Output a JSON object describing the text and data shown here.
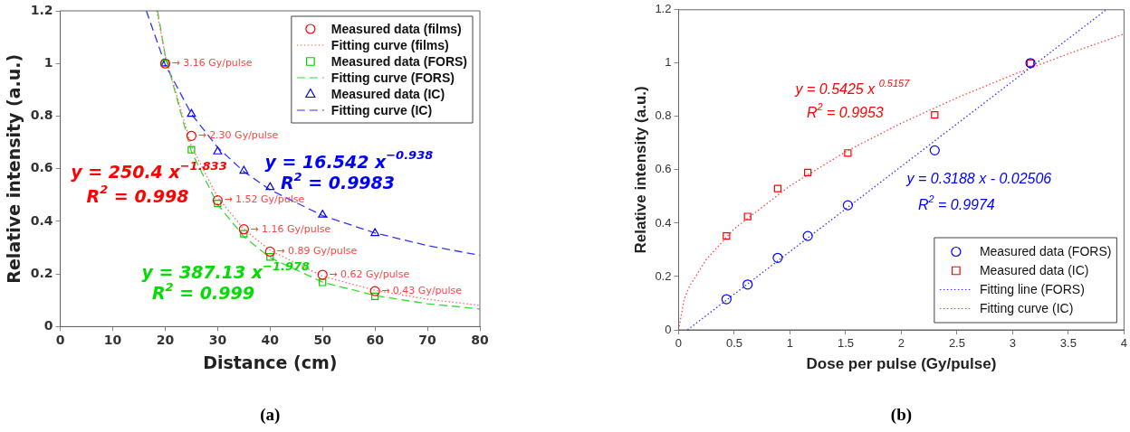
{
  "chart_data": [
    {
      "type": "scatter",
      "xlabel": "Distance (cm)",
      "ylabel": "Relative intensity (a.u.)",
      "xlim": [
        0,
        80
      ],
      "ylim": [
        0,
        1.2
      ],
      "xticks": [
        0,
        10,
        20,
        30,
        40,
        50,
        60,
        70,
        80
      ],
      "yticks": [
        0,
        0.2,
        0.4,
        0.6,
        0.8,
        1,
        1.2
      ],
      "grid": false,
      "legend": "top right",
      "x": [
        20,
        25,
        30,
        35,
        40,
        50,
        60
      ],
      "series": [
        {
          "name": "Measured data (films)",
          "color": "#ff0000",
          "type": "scatter",
          "marker": "circle",
          "values": [
            1,
            0.725,
            0.48,
            0.37,
            0.285,
            0.197,
            0.135
          ]
        },
        {
          "name": "Fitting curve (films)",
          "color": "#ff6666",
          "type": "line",
          "marker": "none",
          "line_style": "dotted",
          "x": [
            18.4,
            20,
            25,
            30,
            35,
            40,
            50,
            60,
            70,
            80
          ],
          "values": [
            1.2,
            1.03,
            0.686,
            0.491,
            0.37,
            0.29,
            0.192,
            0.138,
            0.104,
            0.081
          ]
        },
        {
          "name": "Measured data (FORS)",
          "color": "#00cc00",
          "type": "scatter",
          "marker": "square",
          "values": [
            1,
            0.672,
            0.468,
            0.353,
            0.265,
            0.168,
            0.115
          ]
        },
        {
          "name": "Fitting curve (FORS)",
          "color": "#33dd33",
          "type": "line",
          "marker": "none",
          "line_style": "dashed",
          "x": [
            18.55,
            20,
            25,
            30,
            35,
            40,
            50,
            60,
            70,
            80
          ],
          "values": [
            1.2,
            1.03,
            0.665,
            0.464,
            0.342,
            0.262,
            0.169,
            0.118,
            0.087,
            0.067
          ]
        },
        {
          "name": "Measured data (IC)",
          "color": "#0000ff",
          "type": "scatter",
          "marker": "triangle",
          "values": [
            1,
            0.808,
            0.665,
            0.592,
            0.53,
            0.425,
            0.355
          ]
        },
        {
          "name": "Fitting curve (IC)",
          "color": "#3333ff",
          "type": "line",
          "marker": "none",
          "line_style": "dashed",
          "x": [
            16.4,
            20,
            25,
            30,
            35,
            40,
            50,
            60,
            70,
            80
          ],
          "values": [
            1.2,
            0.996,
            0.808,
            0.681,
            0.589,
            0.52,
            0.422,
            0.356,
            0.308,
            0.271
          ]
        }
      ],
      "annotations": [
        "y = 250.4 x$^{−1.833}$",
        "R$^{2}$ = 0.998",
        "y = 16.542 x$^{−0.938}$",
        "R$^{2}$ = 0.9983",
        "y = 387.13 x$^{−1.978}$",
        "R$^{2}$ = 0.999",
        {
          "text": "→ 3.16 Gy/pulse",
          "x": 20,
          "y": 1
        },
        {
          "text": "→ 2.30 Gy/pulse",
          "x": 25,
          "y": 0.725
        },
        {
          "text": "→ 1.52 Gy/pulse",
          "x": 30,
          "y": 0.48
        },
        {
          "text": "→ 1.16 Gy/pulse",
          "x": 35,
          "y": 0.37
        },
        {
          "text": "→ 0.89 Gy/pulse",
          "x": 40,
          "y": 0.285
        },
        {
          "text": "→ 0.62 Gy/pulse",
          "x": 50,
          "y": 0.197
        },
        {
          "text": "→ 0.43 Gy/pulse",
          "x": 60,
          "y": 0.135
        },
        "(a)"
      ]
    },
    {
      "type": "scatter",
      "xlabel": "Dose per pulse (Gy/pulse)",
      "ylabel": "Relative intensity (a.u.)",
      "xlim": [
        0,
        4
      ],
      "ylim": [
        0,
        1.2
      ],
      "xticks": [
        0,
        0.5,
        1,
        1.5,
        2,
        2.5,
        3,
        3.5,
        4
      ],
      "yticks": [
        0,
        0.2,
        0.4,
        0.6,
        0.8,
        1,
        1.2
      ],
      "grid": false,
      "legend": "bottom right",
      "x": [
        0.43,
        0.62,
        0.89,
        1.16,
        1.52,
        2.3,
        3.16
      ],
      "series": [
        {
          "name": "Measured data (FORS)",
          "color": "#0000ff",
          "type": "scatter",
          "marker": "circle",
          "values": [
            0.115,
            0.17,
            0.27,
            0.352,
            0.467,
            0.673,
            1
          ]
        },
        {
          "name": "Measured data (IC)",
          "color": "#ff0000",
          "type": "scatter",
          "marker": "square",
          "values": [
            0.352,
            0.425,
            0.53,
            0.59,
            0.663,
            0.806,
            1
          ]
        },
        {
          "name": "Fitting line (FORS)",
          "color": "#3333ff",
          "type": "line",
          "marker": "none",
          "line_style": "dotted",
          "x": [
            0.08,
            3.84
          ],
          "values": [
            0,
            1.2
          ]
        },
        {
          "name": "Fitting curve (IC)",
          "color": "#ff4444",
          "type": "line",
          "marker": "none",
          "line_style": "dotted",
          "x": [
            0,
            0.05,
            0.1,
            0.25,
            0.5,
            1,
            1.5,
            2,
            2.5,
            3,
            3.5,
            4
          ],
          "values": [
            0,
            0.116,
            0.165,
            0.265,
            0.379,
            0.54,
            0.668,
            0.775,
            0.87,
            0.956,
            1.035,
            1.109
          ]
        }
      ],
      "annotations": [
        "y = 0.5425 x $^{0.5157}$",
        "R$^{2}$ = 0.9953",
        "y = 0.3188 x - 0.02506",
        "R$^{2}$ = 0.9974",
        "(b)"
      ]
    }
  ]
}
